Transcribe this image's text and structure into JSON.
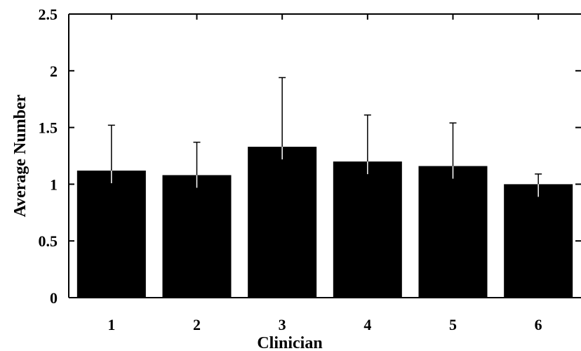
{
  "chart_data": {
    "type": "bar",
    "title": "",
    "xlabel": "Clinician",
    "ylabel": "Average Number",
    "categories": [
      "1",
      "2",
      "3",
      "4",
      "5",
      "6"
    ],
    "values": [
      1.12,
      1.08,
      1.33,
      1.2,
      1.16,
      1.0
    ],
    "error_upper": [
      1.52,
      1.37,
      1.94,
      1.61,
      1.54,
      1.09
    ],
    "ylim": [
      0,
      2.5
    ],
    "yticks": [
      0,
      0.5,
      1,
      1.5,
      2,
      2.5
    ],
    "ytick_labels": [
      "0",
      "0.5",
      "1",
      "1.5",
      "2",
      "2.5"
    ],
    "grid": false,
    "legend": "none",
    "bar_color": "#000000",
    "axis_color": "#000000"
  }
}
